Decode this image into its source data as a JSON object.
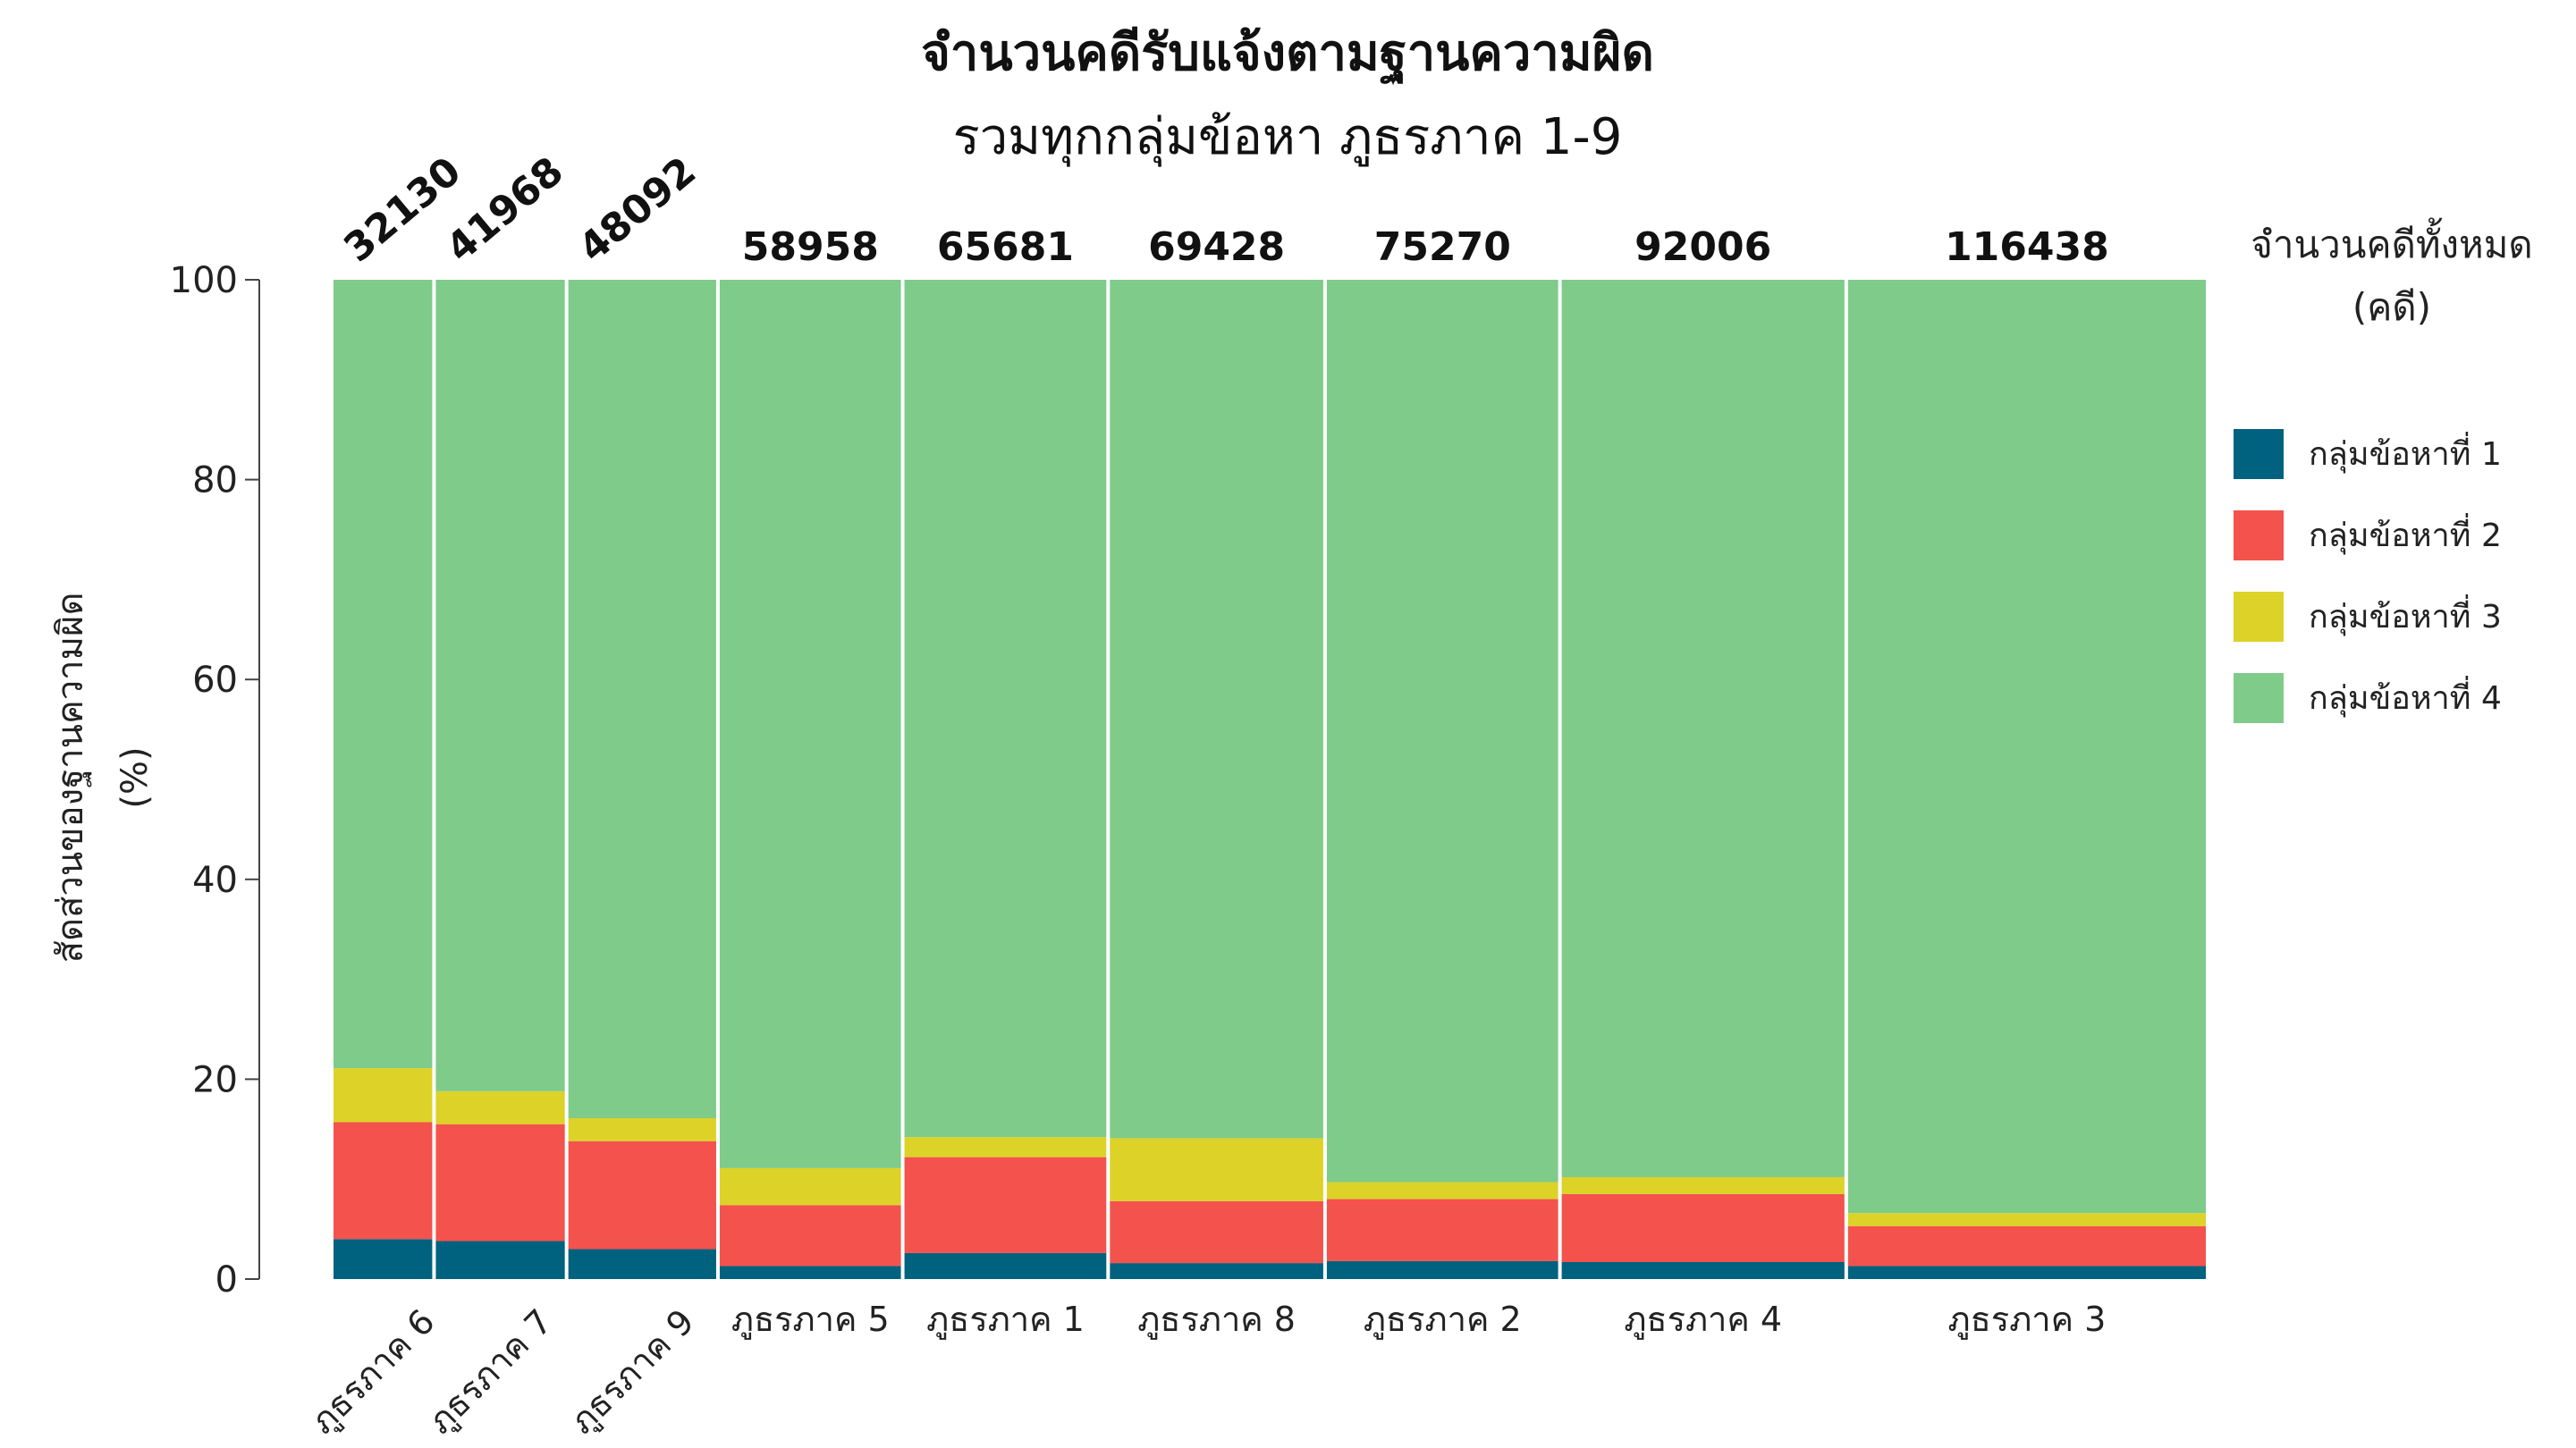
{
  "chart_data": {
    "type": "bar",
    "variant": "marimekko-stacked-percent",
    "title": "จำนวนคดีรับแจ้งตามฐานความผิด",
    "subtitle": "รวมทุกกลุ่มข้อหา ภูธรภาค 1-9",
    "ylabel_line1": "สัดส่วนของฐานความผิด",
    "ylabel_line2": "(%)",
    "ylim": [
      0,
      100
    ],
    "yticks": [
      "0",
      "20",
      "40",
      "60",
      "80",
      "100"
    ],
    "totals_title_line1": "จำนวนคดีทั้งหมด",
    "totals_title_line2": "(คดี)",
    "categories": [
      "ภูธรภาค 6",
      "ภูธรภาค 7",
      "ภูธรภาค 9",
      "ภูธรภาค 5",
      "ภูธรภาค 1",
      "ภูธรภาค 8",
      "ภูธรภาค 2",
      "ภูธรภาค 4",
      "ภูธรภาค 3"
    ],
    "totals": [
      32130,
      41968,
      48092,
      58958,
      65681,
      69428,
      75270,
      92006,
      116438
    ],
    "totals_labels": [
      "32130",
      "41968",
      "48092",
      "58958",
      "65681",
      "69428",
      "75270",
      "92006",
      "116438"
    ],
    "series": [
      {
        "name": "กลุ่มข้อหาที่ 1",
        "color": "#00627f",
        "values": [
          4.0,
          3.8,
          3.0,
          1.3,
          2.6,
          1.6,
          1.8,
          1.7,
          1.3
        ]
      },
      {
        "name": "กลุ่มข้อหาที่ 2",
        "color": "#f4524d",
        "values": [
          11.7,
          11.7,
          10.8,
          6.1,
          9.6,
          6.2,
          6.2,
          6.8,
          4.0
        ]
      },
      {
        "name": "กลุ่มข้อหาที่ 3",
        "color": "#dcd228",
        "values": [
          5.4,
          3.3,
          2.3,
          3.7,
          2.0,
          6.3,
          1.7,
          1.7,
          1.3
        ]
      },
      {
        "name": "กลุ่มข้อหาที่ 4",
        "color": "#7ecb8a",
        "values": [
          78.9,
          81.2,
          83.9,
          88.9,
          85.8,
          85.9,
          90.3,
          89.8,
          93.4
        ]
      }
    ],
    "legend_position": "right",
    "grid": false
  }
}
